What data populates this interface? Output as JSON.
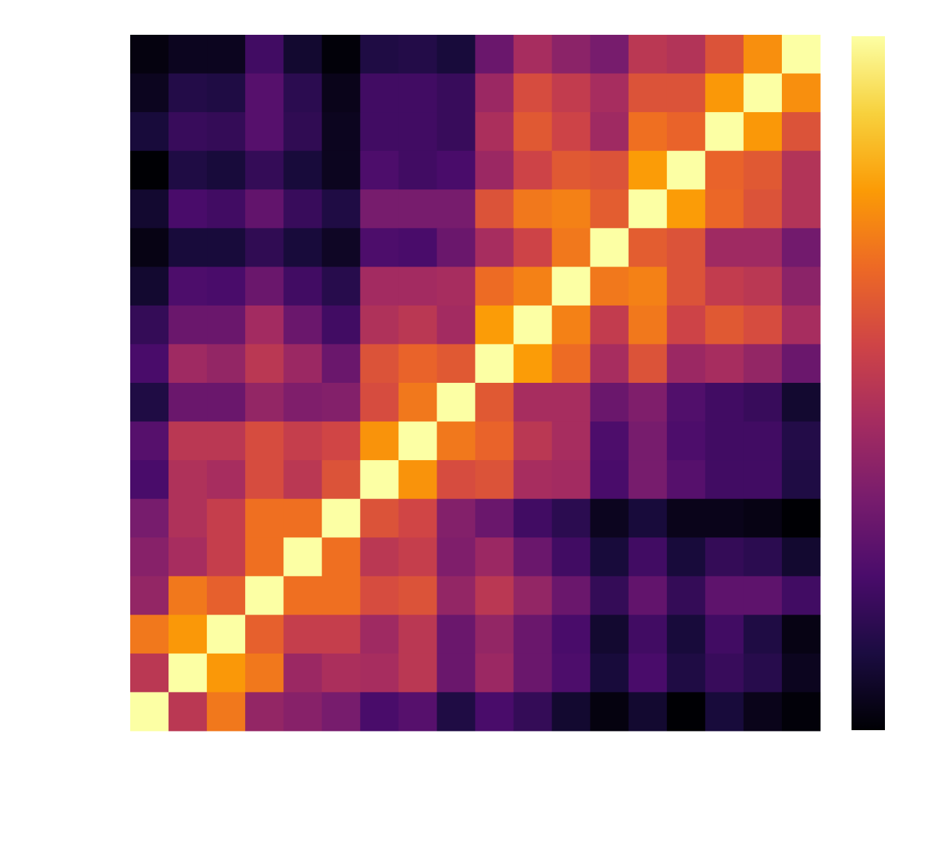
{
  "chart_data": {
    "type": "heatmap",
    "colormap": "inferno",
    "clim": [
      0,
      1
    ],
    "colorbar": true,
    "values": [
      [
        0.02,
        0.05,
        0.05,
        0.2,
        0.08,
        0.01,
        0.12,
        0.13,
        0.1,
        0.3,
        0.45,
        0.38,
        0.33,
        0.5,
        0.48,
        0.6,
        0.75,
        1.0
      ],
      [
        0.05,
        0.13,
        0.12,
        0.25,
        0.15,
        0.04,
        0.2,
        0.2,
        0.18,
        0.42,
        0.58,
        0.52,
        0.45,
        0.6,
        0.6,
        0.77,
        1.0,
        0.75
      ],
      [
        0.1,
        0.18,
        0.17,
        0.25,
        0.16,
        0.05,
        0.2,
        0.2,
        0.18,
        0.46,
        0.62,
        0.55,
        0.43,
        0.68,
        0.65,
        1.0,
        0.77,
        0.6
      ],
      [
        0.0,
        0.12,
        0.1,
        0.17,
        0.1,
        0.05,
        0.23,
        0.2,
        0.22,
        0.42,
        0.55,
        0.62,
        0.6,
        0.78,
        1.0,
        0.65,
        0.62,
        0.48
      ],
      [
        0.08,
        0.22,
        0.2,
        0.28,
        0.18,
        0.12,
        0.33,
        0.33,
        0.33,
        0.6,
        0.7,
        0.72,
        0.63,
        1.0,
        0.78,
        0.66,
        0.6,
        0.48
      ],
      [
        0.03,
        0.1,
        0.1,
        0.16,
        0.1,
        0.06,
        0.23,
        0.22,
        0.3,
        0.45,
        0.55,
        0.7,
        1.0,
        0.63,
        0.6,
        0.43,
        0.43,
        0.32
      ],
      [
        0.08,
        0.23,
        0.22,
        0.3,
        0.2,
        0.14,
        0.44,
        0.44,
        0.45,
        0.67,
        0.72,
        1.0,
        0.7,
        0.72,
        0.6,
        0.52,
        0.5,
        0.38
      ],
      [
        0.17,
        0.3,
        0.3,
        0.44,
        0.3,
        0.2,
        0.47,
        0.5,
        0.44,
        0.78,
        1.0,
        0.72,
        0.52,
        0.7,
        0.55,
        0.62,
        0.58,
        0.45
      ],
      [
        0.22,
        0.43,
        0.4,
        0.5,
        0.42,
        0.3,
        0.6,
        0.65,
        0.62,
        1.0,
        0.78,
        0.67,
        0.45,
        0.6,
        0.42,
        0.45,
        0.4,
        0.3
      ],
      [
        0.12,
        0.3,
        0.3,
        0.4,
        0.35,
        0.36,
        0.58,
        0.7,
        1.0,
        0.62,
        0.45,
        0.45,
        0.3,
        0.35,
        0.24,
        0.2,
        0.18,
        0.08
      ],
      [
        0.25,
        0.5,
        0.5,
        0.58,
        0.53,
        0.56,
        0.76,
        1.0,
        0.7,
        0.65,
        0.5,
        0.45,
        0.23,
        0.33,
        0.23,
        0.2,
        0.2,
        0.13
      ],
      [
        0.22,
        0.47,
        0.45,
        0.58,
        0.5,
        0.6,
        1.0,
        0.76,
        0.58,
        0.6,
        0.45,
        0.44,
        0.22,
        0.33,
        0.25,
        0.2,
        0.2,
        0.12
      ],
      [
        0.33,
        0.47,
        0.53,
        0.68,
        0.68,
        1.0,
        0.6,
        0.56,
        0.36,
        0.3,
        0.2,
        0.15,
        0.05,
        0.1,
        0.04,
        0.04,
        0.03,
        0.0
      ],
      [
        0.37,
        0.45,
        0.53,
        0.68,
        1.0,
        0.68,
        0.5,
        0.53,
        0.35,
        0.42,
        0.3,
        0.2,
        0.1,
        0.2,
        0.1,
        0.17,
        0.15,
        0.08
      ],
      [
        0.4,
        0.7,
        0.64,
        1.0,
        0.68,
        0.68,
        0.58,
        0.6,
        0.4,
        0.5,
        0.4,
        0.3,
        0.17,
        0.28,
        0.17,
        0.27,
        0.27,
        0.2
      ],
      [
        0.7,
        0.77,
        1.0,
        0.64,
        0.53,
        0.53,
        0.43,
        0.5,
        0.3,
        0.4,
        0.3,
        0.22,
        0.08,
        0.2,
        0.1,
        0.2,
        0.12,
        0.03
      ],
      [
        0.5,
        1.0,
        0.77,
        0.7,
        0.42,
        0.46,
        0.45,
        0.5,
        0.3,
        0.42,
        0.3,
        0.23,
        0.1,
        0.22,
        0.12,
        0.18,
        0.14,
        0.05
      ],
      [
        1.0,
        0.5,
        0.7,
        0.4,
        0.37,
        0.33,
        0.22,
        0.25,
        0.12,
        0.22,
        0.17,
        0.08,
        0.02,
        0.08,
        0.0,
        0.1,
        0.04,
        0.01
      ]
    ]
  }
}
